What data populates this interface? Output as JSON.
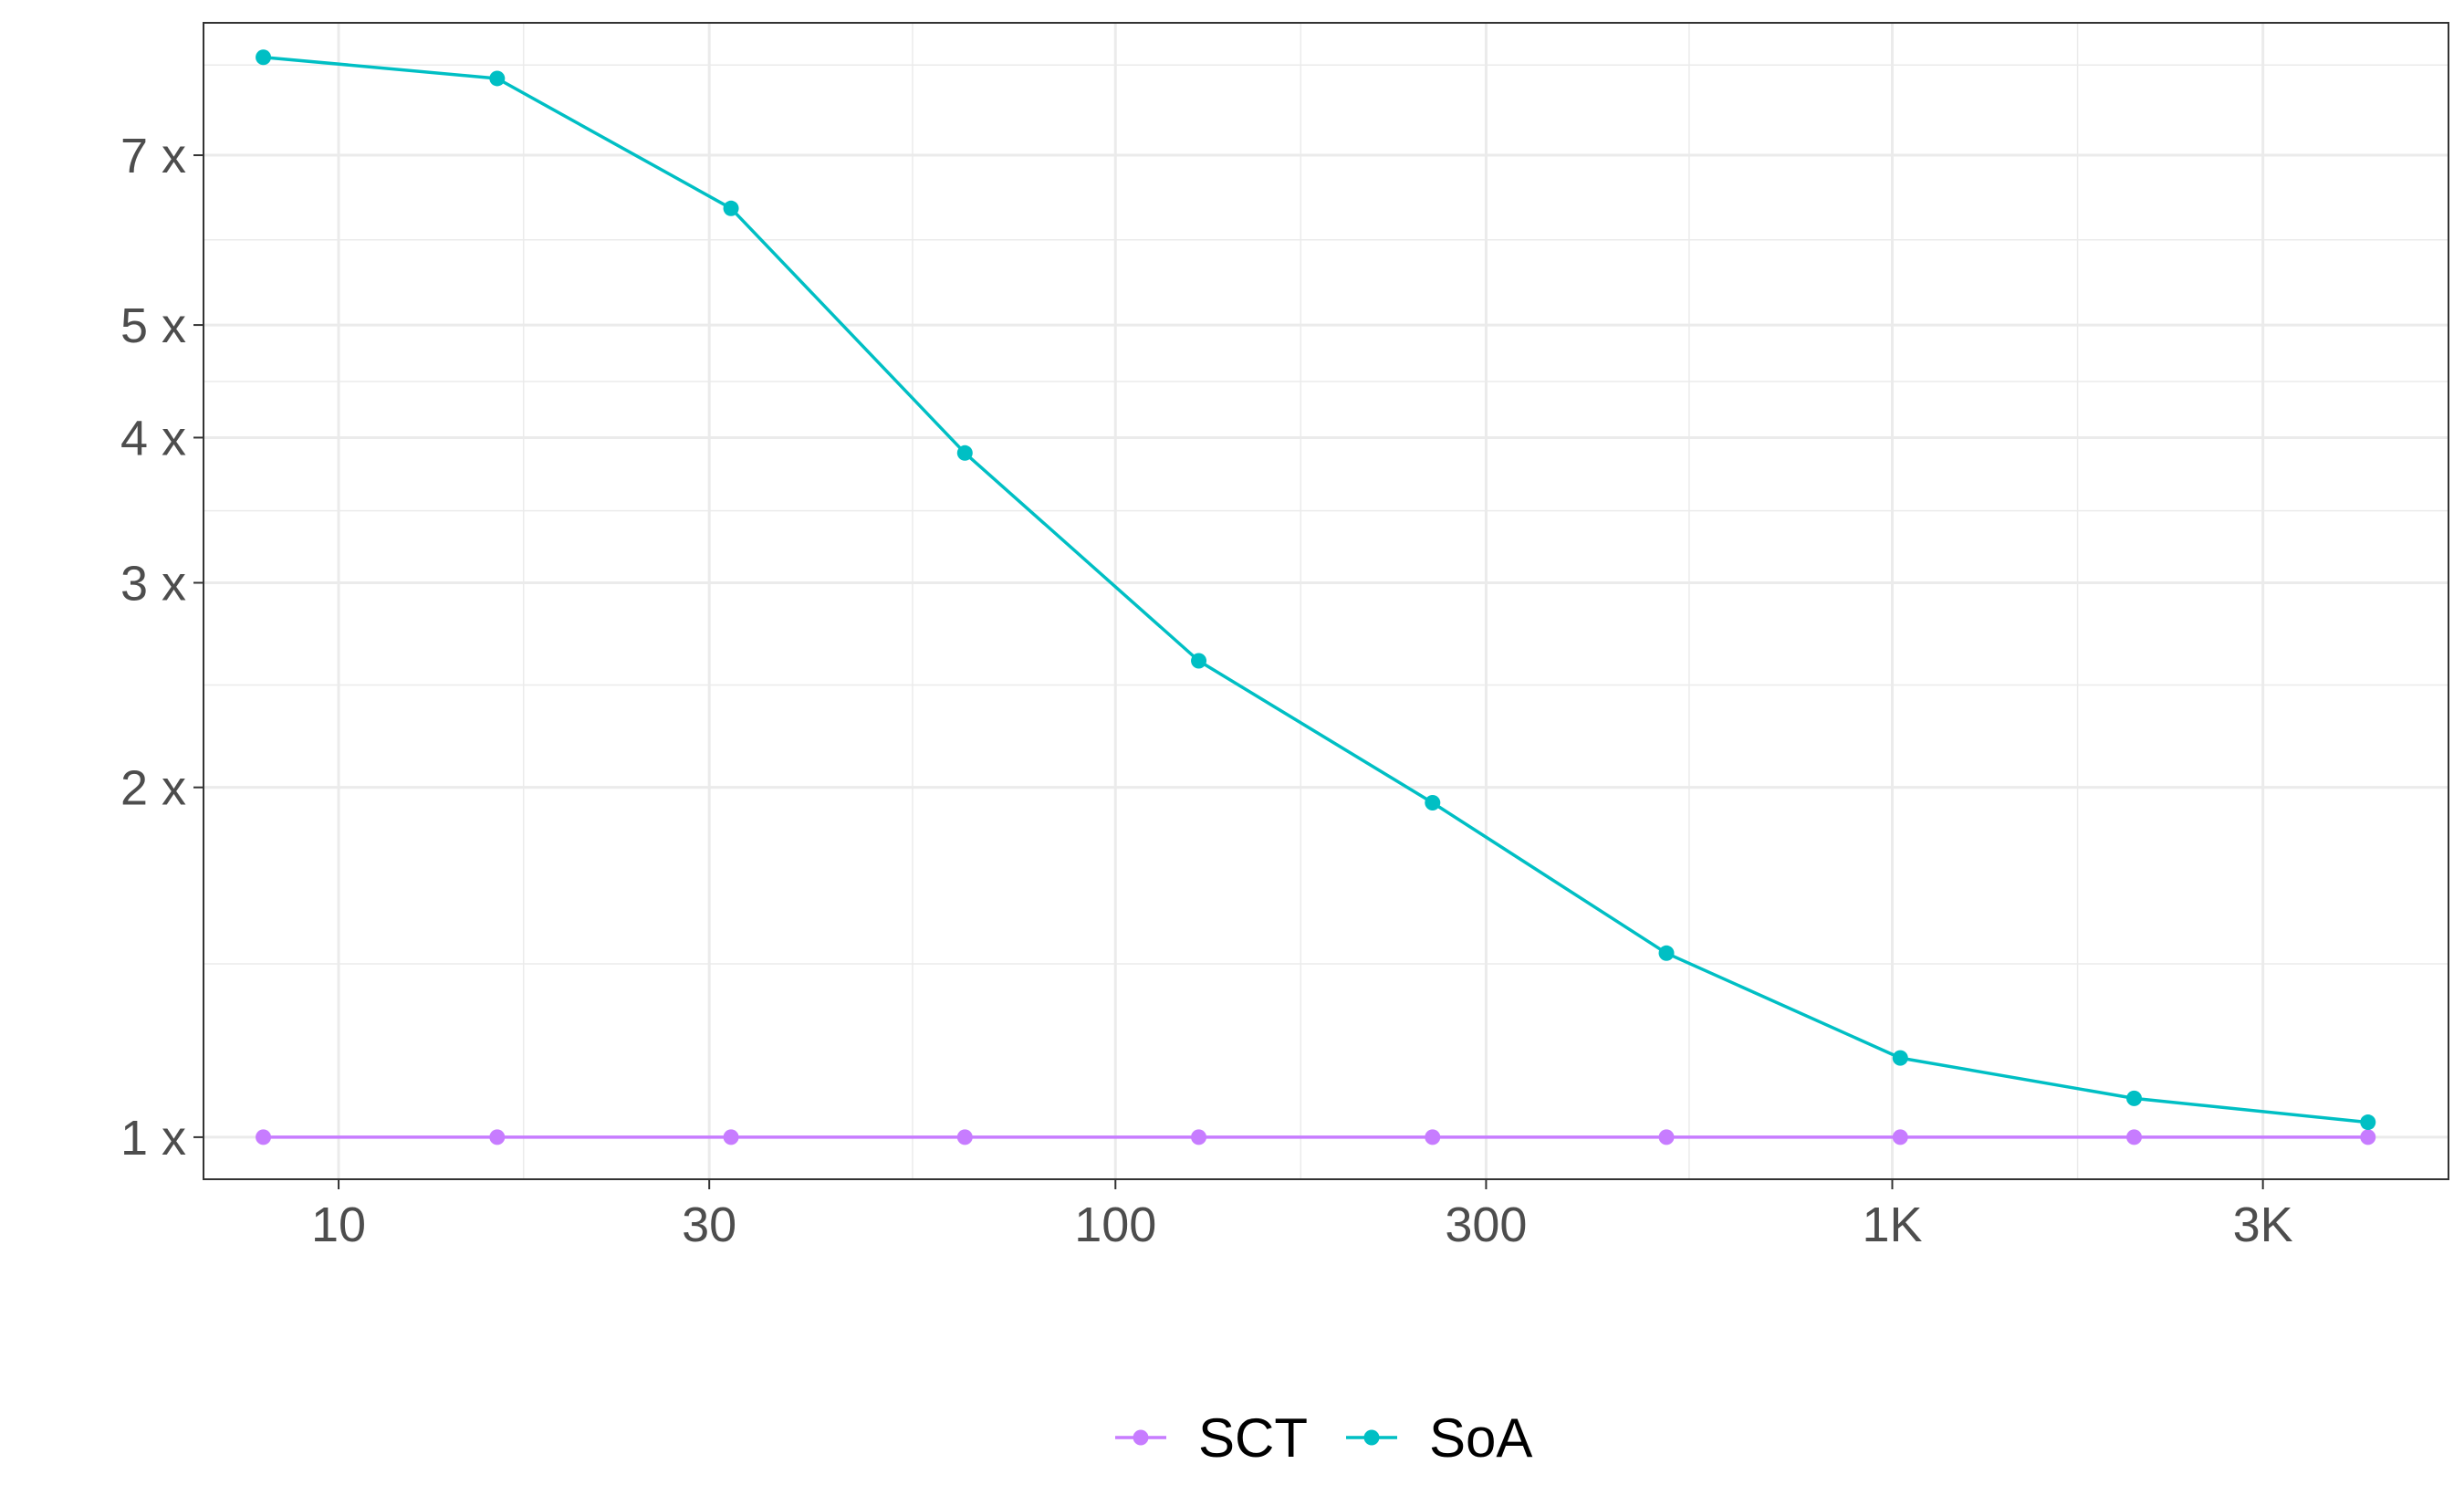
{
  "chart_data": {
    "type": "line",
    "title": "",
    "xlabel": "",
    "ylabel": "",
    "x_scale": "log",
    "y_scale": "log",
    "xlim": [
      6.7,
      5200
    ],
    "ylim": [
      0.92,
      9.1
    ],
    "x_ticks": [
      {
        "value": 10,
        "label": "10"
      },
      {
        "value": 30,
        "label": "30"
      },
      {
        "value": 100,
        "label": "100"
      },
      {
        "value": 300,
        "label": "300"
      },
      {
        "value": 1000,
        "label": "1K"
      },
      {
        "value": 3000,
        "label": "3K"
      }
    ],
    "x_minor_ticks": [
      17.3,
      54.8,
      173.2,
      547.7,
      1732
    ],
    "y_ticks": [
      {
        "value": 1,
        "label": "1 x"
      },
      {
        "value": 2,
        "label": "2 x"
      },
      {
        "value": 3,
        "label": "3 x"
      },
      {
        "value": 4,
        "label": "4 x"
      },
      {
        "value": 5,
        "label": "5 x"
      },
      {
        "value": 7,
        "label": "7 x"
      }
    ],
    "y_minor_ticks": [
      1.41,
      2.45,
      3.46,
      4.47,
      5.92,
      8.37
    ],
    "x": [
      8,
      16,
      32,
      64,
      128,
      256,
      512,
      1024,
      2048,
      4096
    ],
    "series": [
      {
        "name": "SCT",
        "color": "#C77CFF",
        "values": [
          1,
          1,
          1,
          1,
          1,
          1,
          1,
          1,
          1,
          1
        ]
      },
      {
        "name": "SoA",
        "color": "#00BFC4",
        "values": [
          8.5,
          8.15,
          6.3,
          3.88,
          2.57,
          1.94,
          1.44,
          1.17,
          1.08,
          1.03
        ]
      }
    ],
    "grid": true,
    "legend_position": "bottom"
  }
}
